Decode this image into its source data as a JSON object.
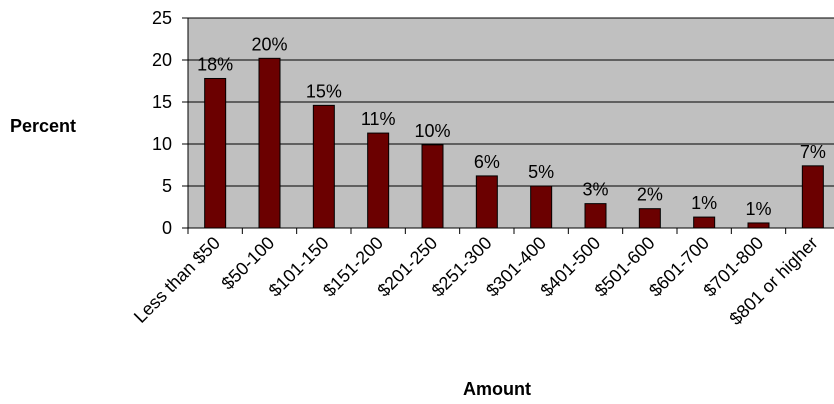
{
  "chart_data": {
    "type": "bar",
    "title": "",
    "xlabel": "Amount",
    "ylabel": "Percent",
    "ylim": [
      0,
      25
    ],
    "yticks": [
      "0",
      "5",
      "10",
      "15",
      "20",
      "25"
    ],
    "grid": true,
    "legend": "none",
    "categories": [
      "Less than $50",
      "$50-100",
      "$101-150",
      "$151-200",
      "$201-250",
      "$251-300",
      "$301-400",
      "$401-500",
      "$501-600",
      "$601-700",
      "$701-800",
      "$801 or higher"
    ],
    "values": [
      17.8,
      20.2,
      14.6,
      11.3,
      9.9,
      6.2,
      5.0,
      2.9,
      2.3,
      1.3,
      0.6,
      7.4
    ],
    "data_labels": [
      "18%",
      "20%",
      "15%",
      "11%",
      "10%",
      "6%",
      "5%",
      "3%",
      "2%",
      "1%",
      "1%",
      "7%"
    ],
    "colors": {
      "bar_fill": "#6b0000",
      "bar_stroke": "#000000",
      "plot_background": "#c0c0c0",
      "gridline": "#000000"
    }
  }
}
